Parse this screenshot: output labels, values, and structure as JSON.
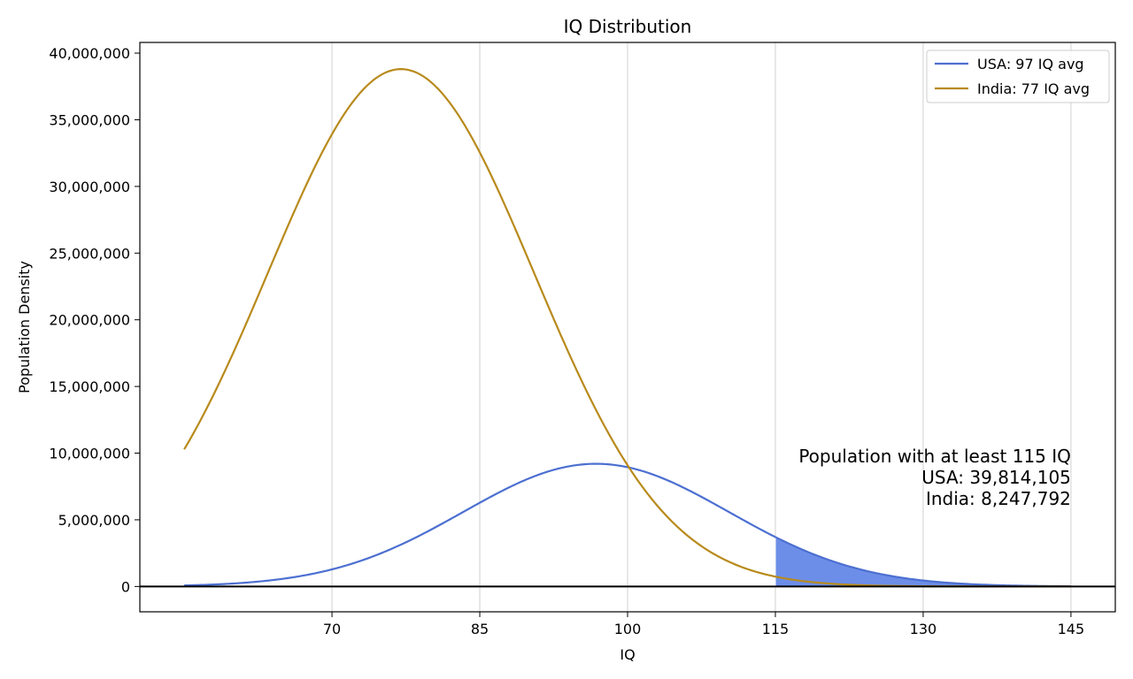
{
  "chart_data": {
    "type": "line",
    "title": "IQ Distribution",
    "xlabel": "IQ",
    "ylabel": "Population Density",
    "xlim": [
      50.5,
      149.5
    ],
    "ylim": [
      -1900000,
      40800000
    ],
    "x_ticks": [
      70,
      85,
      100,
      115,
      130,
      145
    ],
    "x_tick_labels": [
      "70",
      "85",
      "100",
      "115",
      "130",
      "145"
    ],
    "y_ticks": [
      0,
      5000000,
      10000000,
      15000000,
      20000000,
      25000000,
      30000000,
      35000000,
      40000000
    ],
    "y_tick_labels": [
      "0",
      "5,000,000",
      "10,000,000",
      "15,000,000",
      "20,000,000",
      "25,000,000",
      "30,000,000",
      "35,000,000",
      "40,000,000"
    ],
    "grid": "vertical",
    "x_range": [
      55,
      145
    ],
    "threshold": 115,
    "legend_position": "top-right",
    "series": [
      {
        "name": "USA: 97 IQ avg",
        "mean": 96.8,
        "sd": 13.5,
        "peak": 9200000,
        "color": "#4c6fd1",
        "fill_color": "#6d8ee8"
      },
      {
        "name": "India: 77 IQ avg",
        "mean": 77.0,
        "sd": 13.5,
        "peak": 38800000,
        "color": "#b88a1b",
        "fill_color": "#a8843a"
      }
    ],
    "annotation": {
      "lines": [
        "Population with at least 115 IQ",
        "USA: 39,814,105",
        "India: 8,247,792"
      ],
      "anchor_x": 145,
      "anchor_y": 9300000
    }
  }
}
